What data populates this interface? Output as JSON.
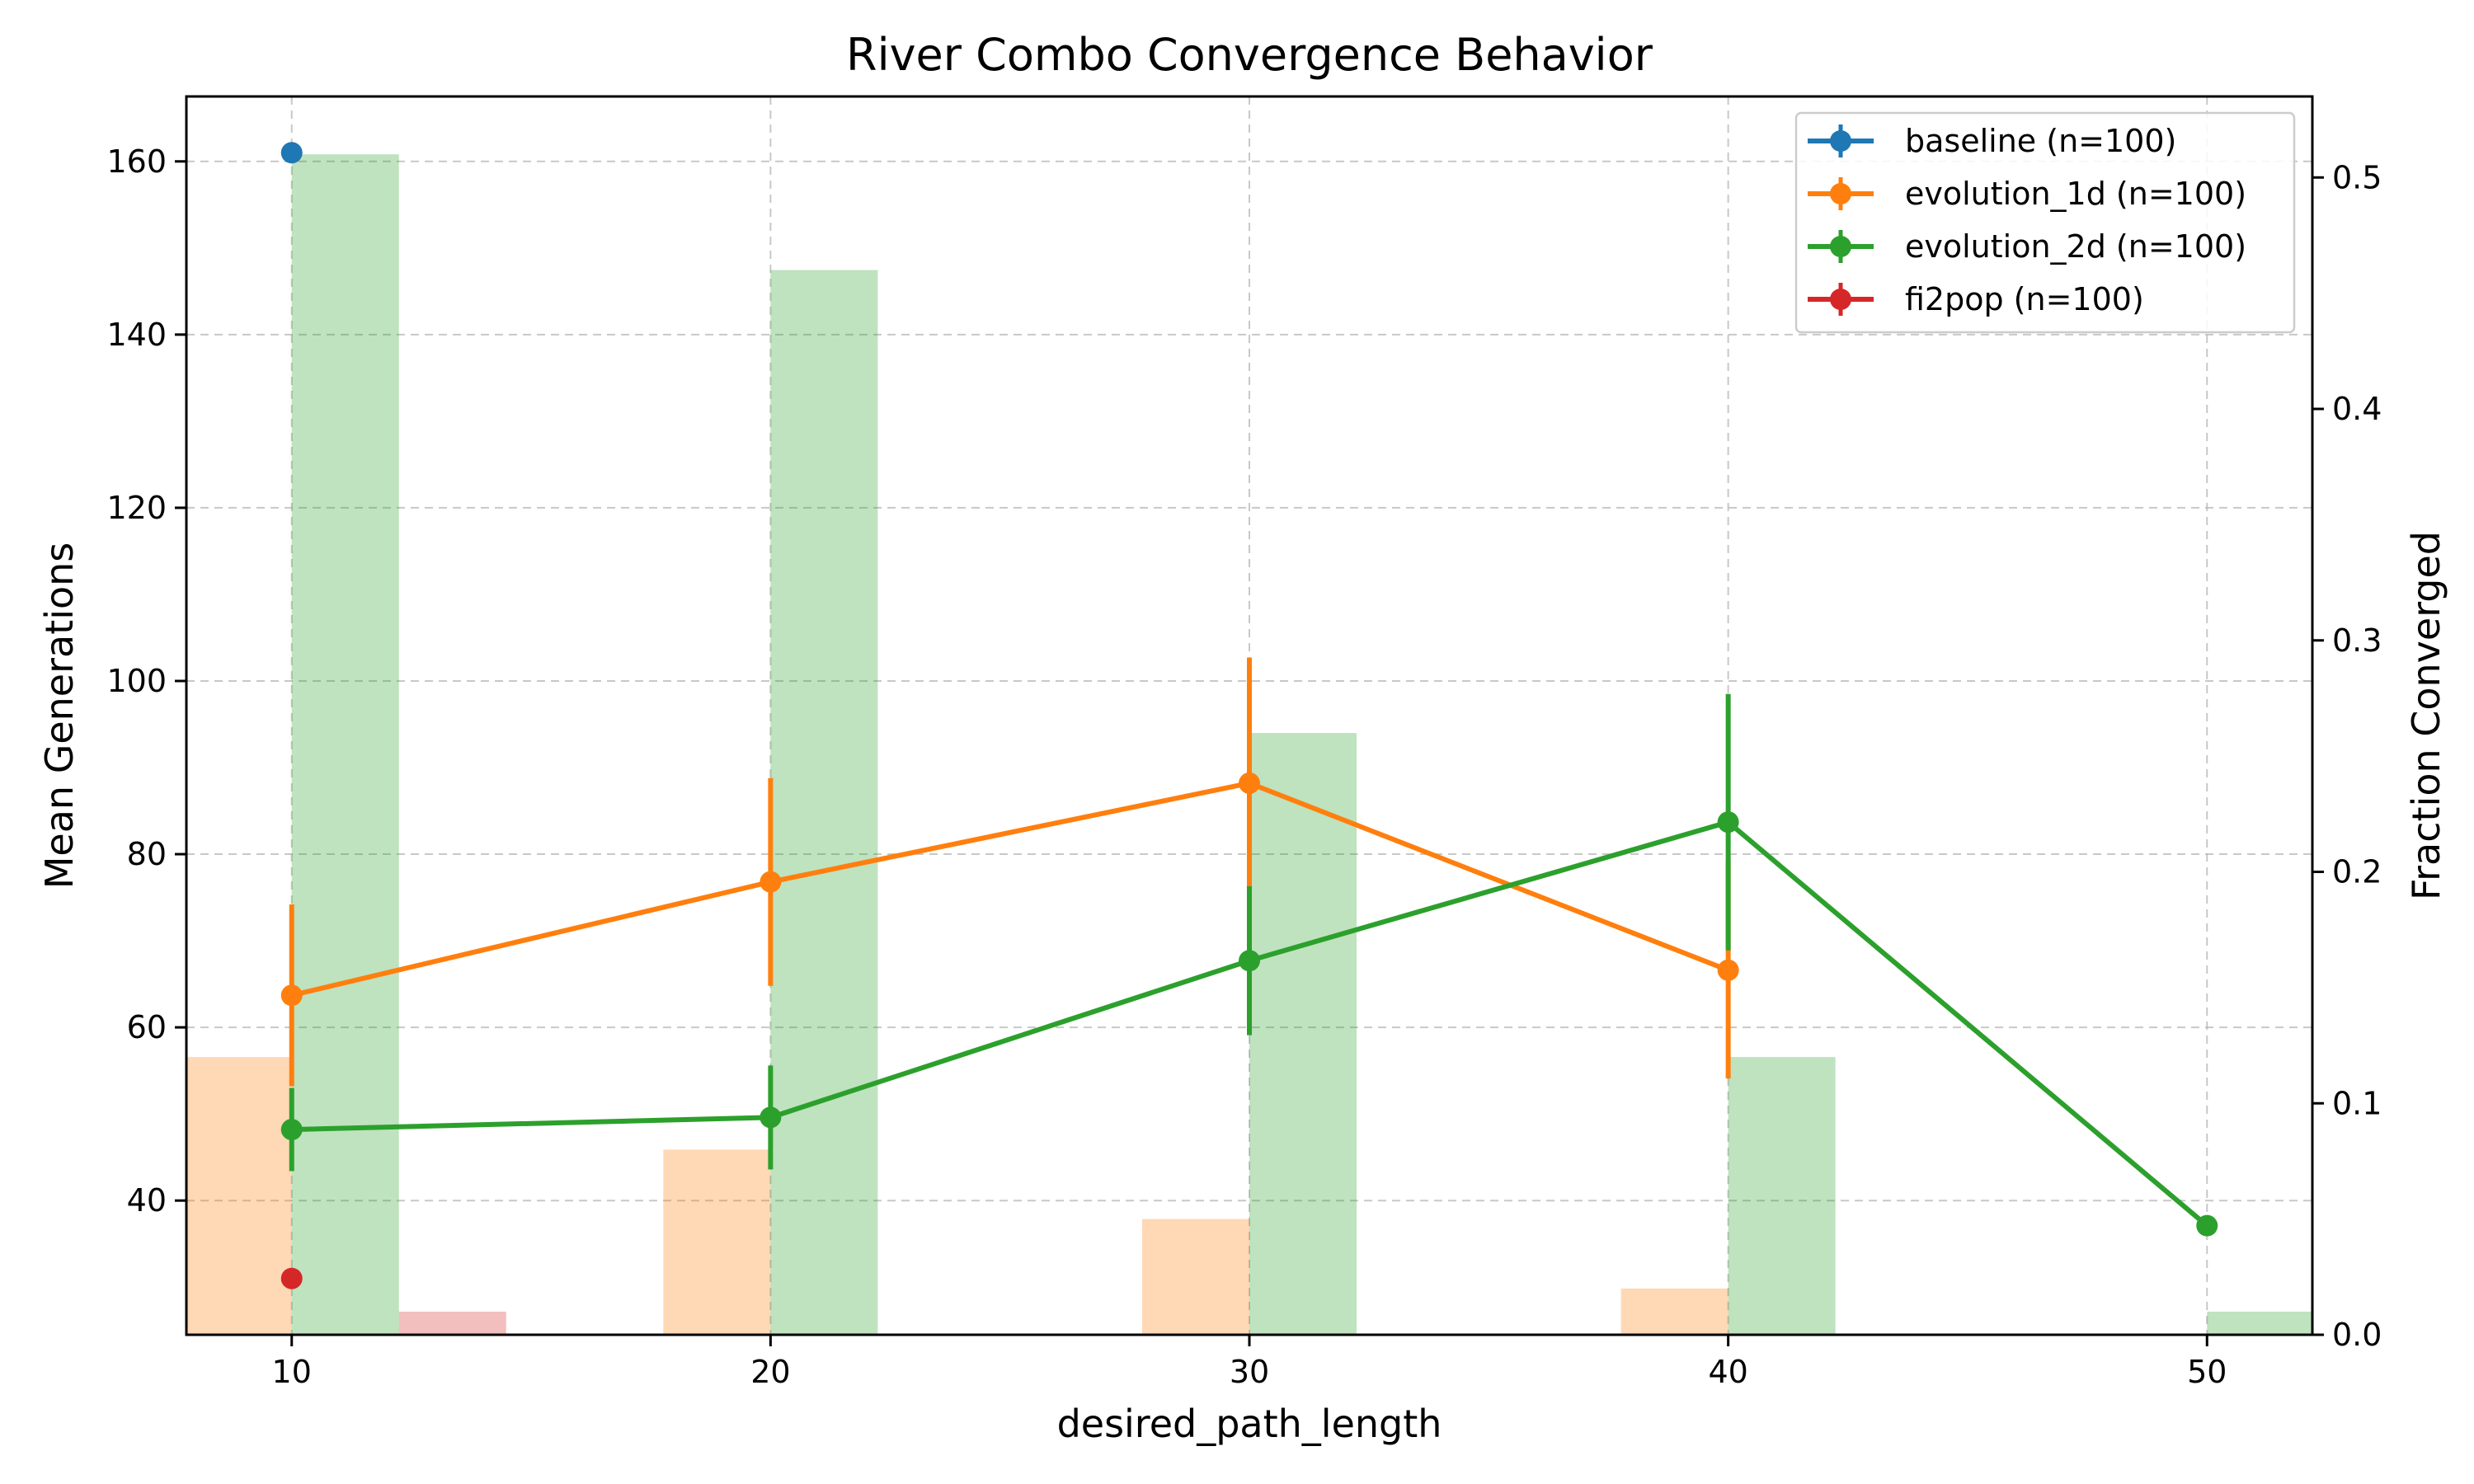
{
  "chart_data": {
    "type": "line",
    "title": "River Combo Convergence Behavior",
    "xlabel": "desired_path_length",
    "ylabel": "Mean Generations",
    "y2label": "Fraction Converged",
    "x_ticks": [
      "10",
      "20",
      "30",
      "40",
      "50"
    ],
    "y_ticks": [
      "40",
      "60",
      "80",
      "100",
      "120",
      "140",
      "160"
    ],
    "y2_ticks": [
      "0.0",
      "0.1",
      "0.2",
      "0.3",
      "0.4",
      "0.5"
    ],
    "xlim": [
      7.8,
      52.2
    ],
    "ylim": [
      24.5,
      167.5
    ],
    "y2lim": [
      0.0,
      0.535
    ],
    "grid": true,
    "legend_position": "top-right",
    "series": [
      {
        "name": "baseline (n=100)",
        "color": "#1f77b4",
        "x": [
          10
        ],
        "y": [
          161
        ],
        "err": [
          0
        ],
        "bar_offset": -1,
        "fraction_x": [
          10
        ],
        "fraction": [
          0.0
        ]
      },
      {
        "name": "evolution_1d (n=100)",
        "color": "#ff7f0e",
        "x": [
          10,
          20,
          30,
          40
        ],
        "y": [
          63.7,
          76.8,
          88.2,
          66.6
        ],
        "err": [
          10.5,
          12,
          14.5,
          12.5
        ],
        "bar_offset": -1,
        "fraction_x": [
          10,
          20,
          30,
          40
        ],
        "fraction": [
          0.12,
          0.08,
          0.05,
          0.02
        ]
      },
      {
        "name": "evolution_2d (n=100)",
        "color": "#2ca02c",
        "x": [
          10,
          20,
          30,
          40,
          50
        ],
        "y": [
          48.2,
          49.6,
          67.7,
          83.7,
          37.1
        ],
        "err": [
          4.8,
          6,
          8.6,
          14.8,
          0
        ],
        "bar_offset": 0,
        "fraction_x": [
          10,
          20,
          30,
          40,
          50
        ],
        "fraction": [
          0.51,
          0.46,
          0.26,
          0.12,
          0.01
        ]
      },
      {
        "name": "fi2pop (n=100)",
        "color": "#d62728",
        "x": [
          10
        ],
        "y": [
          31
        ],
        "err": [
          0
        ],
        "bar_offset": 1,
        "fraction_x": [
          10
        ],
        "fraction": [
          0.01
        ]
      }
    ]
  }
}
